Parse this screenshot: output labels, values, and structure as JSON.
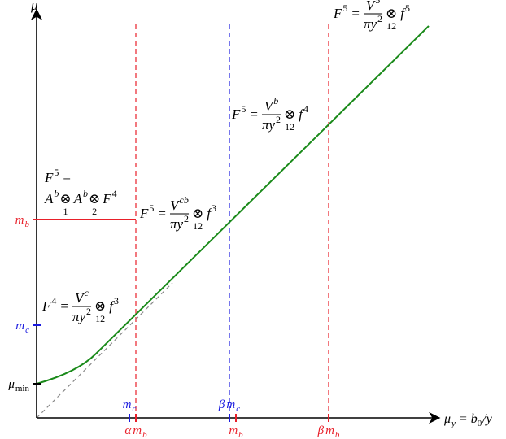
{
  "axes": {
    "y_label": "μ",
    "x_label": {
      "main": "μ",
      "sub": "y",
      "eq": "= b",
      "sub2": "0",
      "tail": "/y"
    }
  },
  "y_labels": [
    {
      "main": "m",
      "sub": "b",
      "color": "#e8202a"
    },
    {
      "main": "m",
      "sub": "c",
      "color": "#1a1adf"
    },
    {
      "main": "μ",
      "sub": "min",
      "color": "#000000"
    }
  ],
  "x_labels": [
    {
      "prefix": "",
      "main": "m",
      "sub": "c",
      "color": "#1a1adf"
    },
    {
      "prefix": "α",
      "main": "m",
      "sub": "b",
      "color": "#e8202a"
    },
    {
      "prefix": "β",
      "main": "m",
      "sub": "c",
      "color": "#1a1adf"
    },
    {
      "prefix": "",
      "main": "m",
      "sub": "b",
      "color": "#e8202a"
    },
    {
      "prefix": "β",
      "main": "m",
      "sub": "b",
      "color": "#e8202a"
    }
  ],
  "formulas": [
    {
      "lhs": "F",
      "lhs_sup": "5",
      "eq": "=",
      "num": "V",
      "num_sup": "5",
      "den": "πy",
      "den_sup": "2",
      "op": "⊗",
      "op_sub": "12",
      "rhs": "f",
      "rhs_sup": "5"
    },
    {
      "lhs": "F",
      "lhs_sup": "5",
      "eq": "=",
      "num": "V",
      "num_sup": "b",
      "den": "πy",
      "den_sup": "2",
      "op": "⊗",
      "op_sub": "12",
      "rhs": "f",
      "rhs_sup": "4"
    },
    {
      "lhs": "F",
      "lhs_sup": "5",
      "eq": "=",
      "num": "V",
      "num_sup": "cb",
      "den": "πy",
      "den_sup": "2",
      "op": "⊗",
      "op_sub": "12",
      "rhs": "f",
      "rhs_sup": "3"
    },
    {
      "lhs": "F",
      "lhs_sup": "4",
      "eq": "=",
      "num": "V",
      "num_sup": "c",
      "den": "πy",
      "den_sup": "2",
      "op": "⊗",
      "op_sub": "12",
      "rhs": "f",
      "rhs_sup": "3"
    }
  ],
  "product_formula": {
    "lhs": "F",
    "lhs_sup": "5",
    "eq": "=",
    "terms": [
      {
        "t": "A",
        "sup": "b"
      },
      {
        "op": "⊗",
        "sub": "1"
      },
      {
        "t": "A",
        "sup": "b"
      },
      {
        "op": "⊗",
        "sub": "2"
      },
      {
        "t": "F",
        "sup": "4"
      }
    ]
  }
}
